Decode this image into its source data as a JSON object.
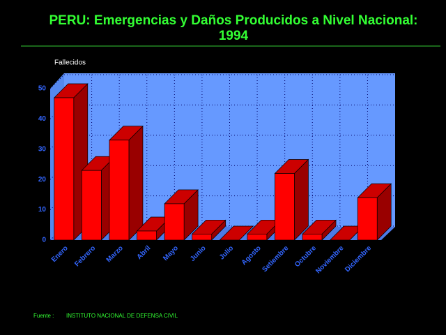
{
  "chart_data": {
    "type": "bar3d",
    "title": "PERU: Emergencias y Daños Producidos a Nivel Nacional:",
    "subtitle": "1994",
    "y_label": "Fallecidos",
    "categories": [
      "Enero",
      "Febrero",
      "Marzo",
      "Abril",
      "Mayo",
      "Junio",
      "Julio",
      "Agosto",
      "Setiembre",
      "Octubre",
      "Noviembre",
      "Diciembre"
    ],
    "values": [
      47,
      23,
      33,
      3,
      12,
      2,
      0,
      2,
      22,
      2,
      0,
      14
    ],
    "color": "#ff0000",
    "ylim": [
      0,
      50
    ],
    "yticks": [
      0,
      10,
      20,
      30,
      40,
      50
    ],
    "grid": true,
    "source_label": "Fuente :",
    "source": "INSTITUTO NACIONAL DE DEFENSA CIVIL"
  }
}
